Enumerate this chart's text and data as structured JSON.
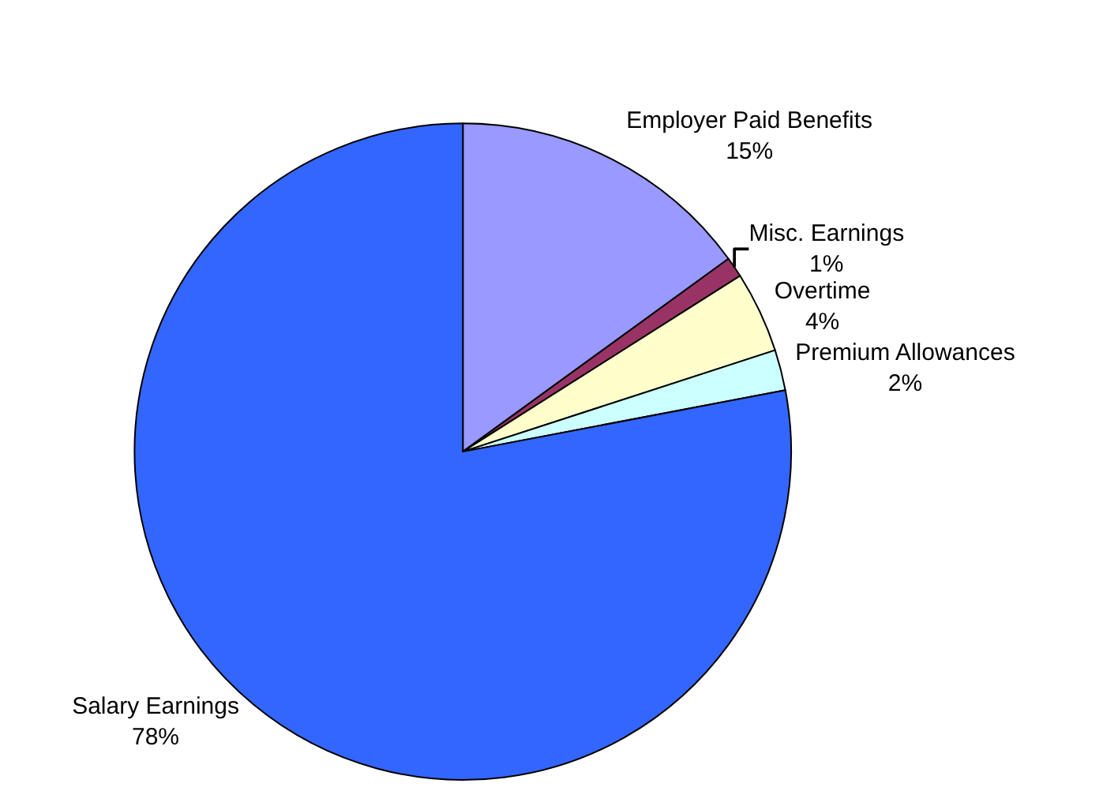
{
  "chart_data": {
    "type": "pie",
    "categories": [
      "Employer Paid Benefits",
      "Misc. Earnings",
      "Overtime",
      "Premium Allowances",
      "Salary Earnings"
    ],
    "values": [
      15,
      1,
      4,
      2,
      78
    ],
    "value_labels": [
      "15%",
      "1%",
      "4%",
      "2%",
      "78%"
    ],
    "colors": [
      "#9999ff",
      "#993366",
      "#ffffcc",
      "#ccffff",
      "#3366ff"
    ],
    "legend": false
  }
}
